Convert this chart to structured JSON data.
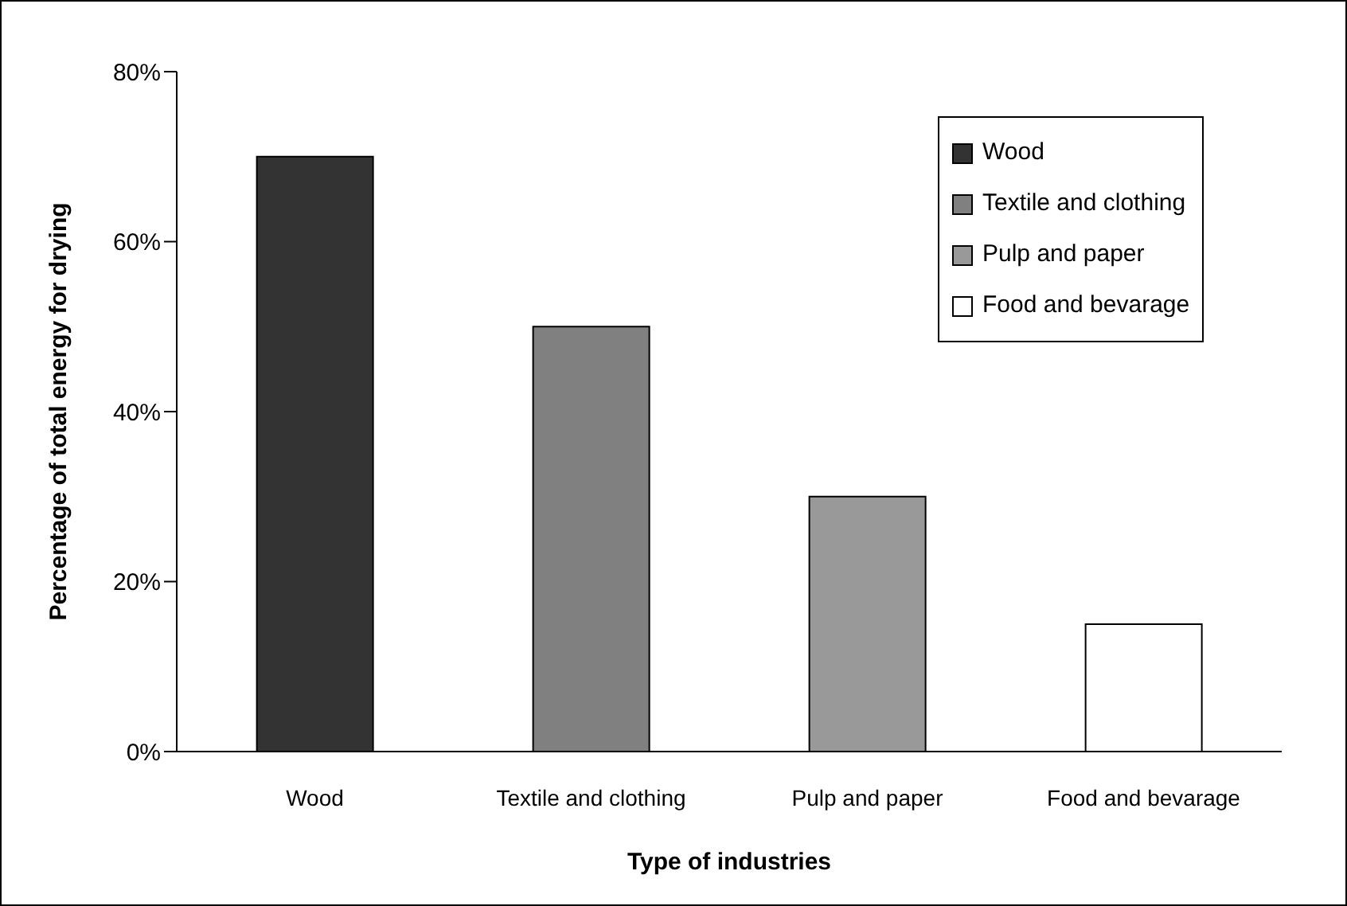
{
  "chart_data": {
    "type": "bar",
    "xlabel": "Type of industries",
    "ylabel": "Percentage of total energy for drying",
    "categories": [
      "Wood",
      "Textile and clothing",
      "Pulp and paper",
      "Food and bevarage"
    ],
    "series": [
      {
        "name": "Wood",
        "color": "#333333",
        "values": [
          70,
          null,
          null,
          null
        ]
      },
      {
        "name": "Textile and clothing",
        "color": "#808080",
        "values": [
          null,
          50,
          null,
          null
        ]
      },
      {
        "name": "Pulp and paper",
        "color": "#999999",
        "values": [
          null,
          null,
          30,
          null
        ]
      },
      {
        "name": "Food and bevarage",
        "color": "#ffffff",
        "values": [
          null,
          null,
          null,
          15
        ]
      }
    ],
    "stacked": true,
    "ylim": [
      0,
      80
    ],
    "yticks": [
      {
        "value": 0,
        "label": "0%"
      },
      {
        "value": 20,
        "label": "20%"
      },
      {
        "value": 40,
        "label": "40%"
      },
      {
        "value": 60,
        "label": "60%"
      },
      {
        "value": 80,
        "label": "80%"
      }
    ],
    "grid": false,
    "legend": "top right"
  }
}
